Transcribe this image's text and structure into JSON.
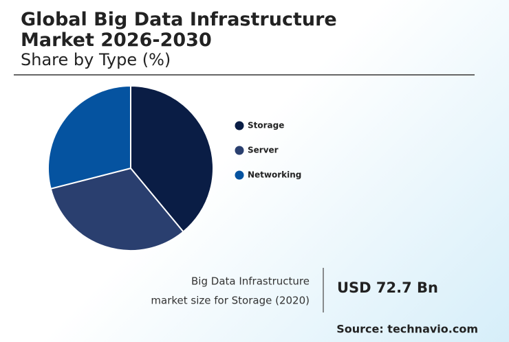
{
  "chart_data": {
    "type": "pie",
    "title": "Global Big Data Infrastructure Market 2026-2030",
    "subtitle": "Share by Type (%)",
    "categories": [
      "Storage",
      "Server",
      "Networking"
    ],
    "values": [
      39,
      32,
      29
    ],
    "colors": [
      "#0a1d45",
      "#2a3f6f",
      "#0553a0"
    ],
    "annotation_lines": [
      "Big Data Infrastructure",
      "market size for Storage (2020)"
    ],
    "highlight": "USD 72.7 Bn",
    "source": "Source: technavio.com"
  }
}
